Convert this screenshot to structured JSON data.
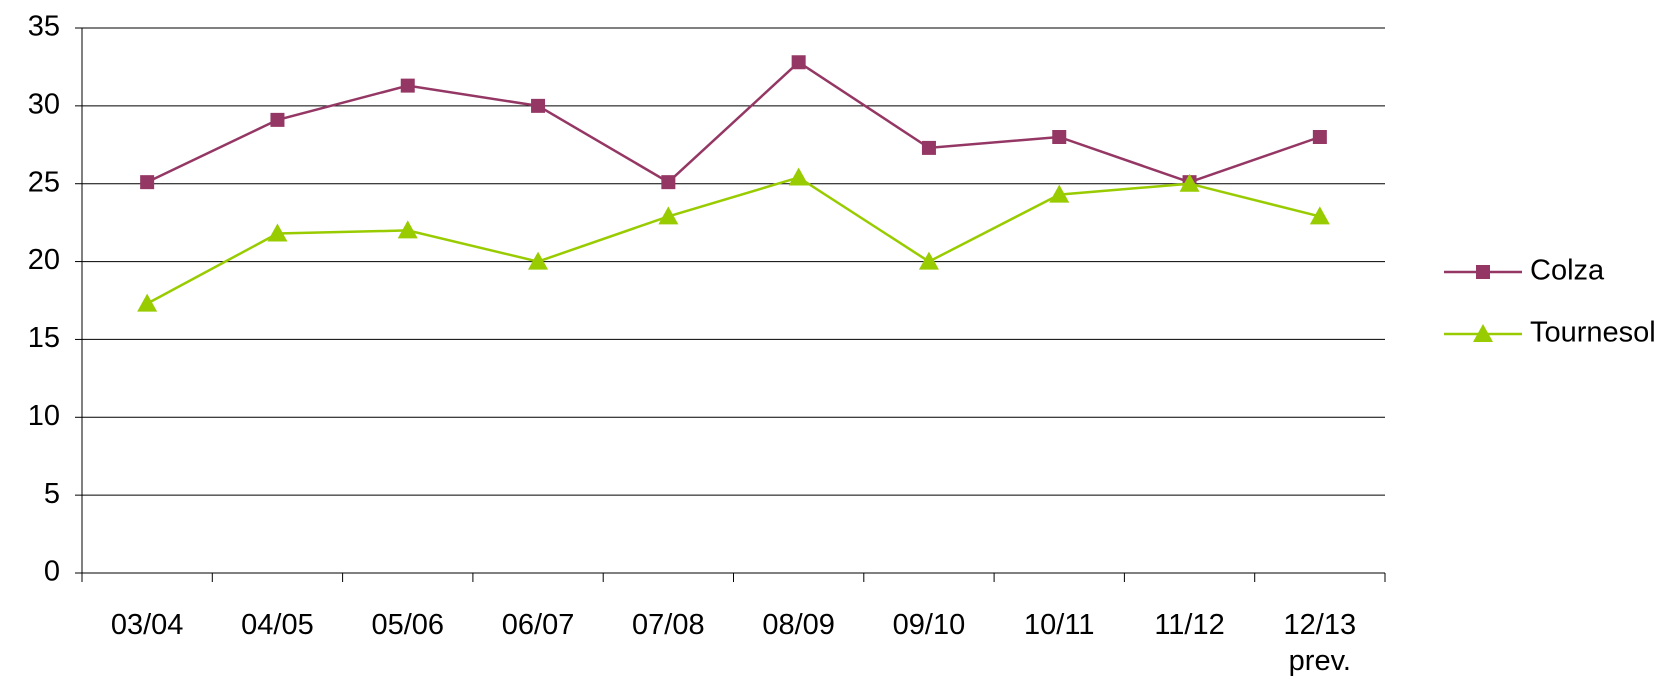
{
  "chart_data": {
    "type": "line",
    "categories": [
      "03/04",
      "04/05",
      "05/06",
      "06/07",
      "07/08",
      "08/09",
      "09/10",
      "10/11",
      "11/12",
      "12/13 prev."
    ],
    "series": [
      {
        "name": "Colza",
        "color": "#953764",
        "marker": "square",
        "values": [
          25.1,
          29.1,
          31.3,
          30.0,
          25.1,
          32.8,
          27.3,
          28.0,
          25.1,
          28.0
        ]
      },
      {
        "name": "Tournesol",
        "color": "#99cc00",
        "marker": "triangle",
        "values": [
          17.3,
          21.8,
          22.0,
          20.0,
          22.9,
          25.4,
          20.0,
          24.3,
          25.0,
          22.9
        ]
      }
    ],
    "ylim": [
      0,
      35
    ],
    "yticks": [
      0,
      5,
      10,
      15,
      20,
      25,
      30,
      35
    ],
    "grid": true,
    "legend": "right"
  }
}
